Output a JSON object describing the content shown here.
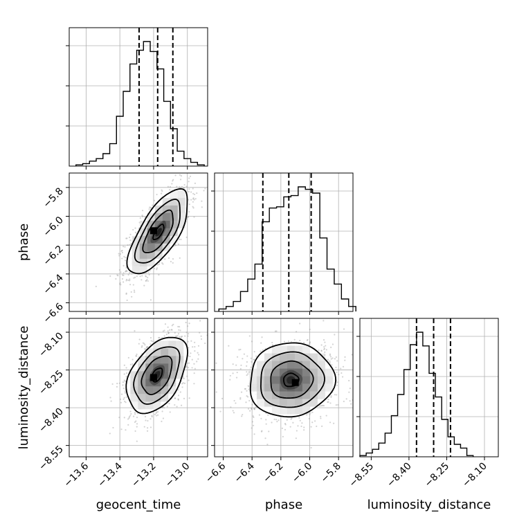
{
  "chart_data": {
    "type": "corner",
    "parameters": [
      "geocent_time",
      "phase",
      "luminosity_distance"
    ],
    "axis_labels": {
      "geocent_time": "geocent_time",
      "phase": "phase",
      "luminosity_distance": "luminosity_distance"
    },
    "ranges": {
      "geocent_time": [
        -13.7,
        -12.88
      ],
      "phase": [
        -6.66,
        -5.7
      ],
      "luminosity_distance": [
        -8.595,
        -8.045
      ]
    },
    "ticks": {
      "geocent_time": [
        -13.6,
        -13.4,
        -13.2,
        -13.0
      ],
      "phase": [
        -6.6,
        -6.4,
        -6.2,
        -6.0,
        -5.8
      ],
      "luminosity_distance": [
        -8.55,
        -8.4,
        -8.25,
        -8.1
      ]
    },
    "tick_labels": {
      "geocent_time": [
        "−13.6",
        "−13.4",
        "−13.2",
        "−13.0"
      ],
      "phase": [
        "−6.6",
        "−6.4",
        "−6.2",
        "−6.0",
        "−5.8"
      ],
      "luminosity_distance": [
        "−8.55",
        "−8.40",
        "−8.25",
        "−8.10"
      ]
    },
    "histograms": {
      "geocent_time": {
        "bin_start": -13.66,
        "bin_width": 0.04,
        "counts": [
          1,
          2,
          4,
          6,
          10,
          18,
          40,
          60,
          82,
          93,
          100,
          92,
          78,
          52,
          30,
          12,
          6,
          3,
          1
        ]
      },
      "phase": {
        "bin_start": -6.63,
        "bin_width": 0.05,
        "counts": [
          2,
          4,
          8,
          16,
          26,
          38,
          72,
          83,
          84,
          92,
          93,
          100,
          98,
          95,
          59,
          34,
          22,
          10,
          4
        ]
      },
      "luminosity_distance": {
        "bin_start": -8.595,
        "bin_width": 0.025,
        "counts": [
          1,
          3,
          6,
          11,
          19,
          33,
          50,
          70,
          90,
          100,
          89,
          67,
          48,
          30,
          16,
          10,
          7,
          1
        ]
      }
    },
    "quantiles": {
      "geocent_time": [
        -13.286,
        -13.176,
        -13.086
      ],
      "phase": [
        -6.325,
        -6.145,
        -5.99
      ],
      "luminosity_distance": [
        -8.37,
        -8.302,
        -8.235
      ]
    },
    "pairs": [
      {
        "x": "geocent_time",
        "y": "phase",
        "center": [
          -13.17,
          -6.11
        ],
        "sigma": [
          0.085,
          0.14
        ],
        "rho": 0.7,
        "peak": [
          -13.2,
          -6.1
        ]
      },
      {
        "x": "geocent_time",
        "y": "luminosity_distance",
        "center": [
          -13.18,
          -8.27
        ],
        "sigma": [
          0.085,
          0.072
        ],
        "rho": 0.45,
        "peak": [
          -13.2,
          -8.28
        ]
      },
      {
        "x": "phase",
        "y": "luminosity_distance",
        "center": [
          -6.13,
          -8.29
        ],
        "sigma": [
          0.14,
          0.07
        ],
        "rho": 0.05,
        "peak": [
          -6.1,
          -8.3
        ]
      }
    ],
    "contour_levels_sigma": [
      0.5,
      1.0,
      1.5,
      2.0
    ],
    "colors": {
      "hist_line": "#000000",
      "quantile_line": "#000000",
      "contour": "#000000",
      "scatter": "#9e9e9e",
      "grid": "#b0b0b0",
      "frame": "#000000"
    },
    "grid": true
  }
}
